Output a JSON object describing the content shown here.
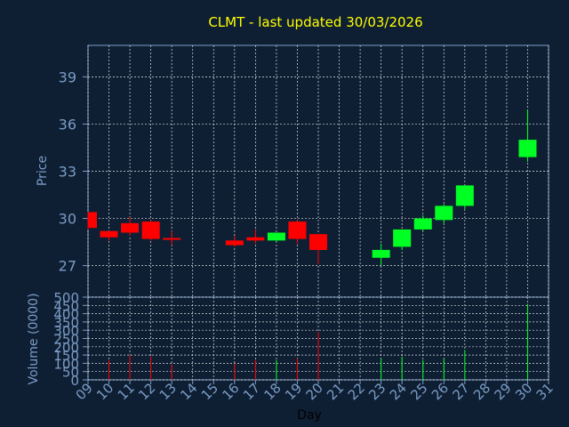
{
  "chart_data": {
    "type": "candlestick",
    "title": "CLMT - last updated 30/03/2026",
    "price_panel": {
      "ylabel": "Price",
      "ylim": [
        25,
        41
      ],
      "yticks": [
        "27",
        "30",
        "33",
        "36",
        "39"
      ],
      "grid": true
    },
    "volume_panel": {
      "ylabel": "Volume (0000)",
      "ylim": [
        0,
        500
      ],
      "yticks": [
        "0",
        "50",
        "100",
        "150",
        "200",
        "250",
        "300",
        "350",
        "400",
        "450",
        "500"
      ],
      "grid": true
    },
    "xlabel": "Day",
    "xticks": [
      "09",
      "10",
      "11",
      "12",
      "13",
      "14",
      "15",
      "16",
      "17",
      "18",
      "19",
      "20",
      "21",
      "22",
      "23",
      "24",
      "25",
      "26",
      "27",
      "28",
      "29",
      "30",
      "31"
    ],
    "colors": {
      "up": "#00ff22",
      "down": "#ff0000",
      "background": "#0f1f33",
      "grid": "#ffffff",
      "title": "#ffff00",
      "axis_text": "#7a9cc6"
    },
    "candles": [
      {
        "day": "09",
        "open": 30.4,
        "high": 30.4,
        "low": 29.3,
        "close": 29.4,
        "volume": 0
      },
      {
        "day": "10",
        "open": 29.2,
        "high": 29.2,
        "low": 28.6,
        "close": 28.8,
        "volume": 120
      },
      {
        "day": "11",
        "open": 29.7,
        "high": 30.1,
        "low": 28.9,
        "close": 29.1,
        "volume": 150
      },
      {
        "day": "12",
        "open": 29.8,
        "high": 29.9,
        "low": 28.6,
        "close": 28.7,
        "volume": 140
      },
      {
        "day": "13",
        "open": 28.7,
        "high": 29.2,
        "low": 28.3,
        "close": 28.6,
        "volume": 90
      },
      {
        "day": "16",
        "open": 28.6,
        "high": 28.9,
        "low": 28.2,
        "close": 28.3,
        "volume": 100
      },
      {
        "day": "17",
        "open": 28.8,
        "high": 29.3,
        "low": 28.4,
        "close": 28.6,
        "volume": 120
      },
      {
        "day": "18",
        "open": 28.6,
        "high": 29.1,
        "low": 28.5,
        "close": 29.1,
        "volume": 120
      },
      {
        "day": "19",
        "open": 29.8,
        "high": 29.9,
        "low": 28.4,
        "close": 28.7,
        "volume": 130
      },
      {
        "day": "20",
        "open": 29.0,
        "high": 29.0,
        "low": 27.1,
        "close": 28.0,
        "volume": 290
      },
      {
        "day": "23",
        "open": 27.5,
        "high": 28.4,
        "low": 27.0,
        "close": 28.0,
        "volume": 130
      },
      {
        "day": "24",
        "open": 28.2,
        "high": 29.3,
        "low": 28.0,
        "close": 29.3,
        "volume": 140
      },
      {
        "day": "25",
        "open": 29.3,
        "high": 30.2,
        "low": 29.2,
        "close": 30.0,
        "volume": 120
      },
      {
        "day": "26",
        "open": 29.9,
        "high": 30.9,
        "low": 29.7,
        "close": 30.8,
        "volume": 130
      },
      {
        "day": "27",
        "open": 30.8,
        "high": 32.1,
        "low": 30.6,
        "close": 32.1,
        "volume": 180
      },
      {
        "day": "30",
        "open": 33.9,
        "high": 36.9,
        "low": 33.6,
        "close": 35.0,
        "volume": 460
      }
    ]
  }
}
